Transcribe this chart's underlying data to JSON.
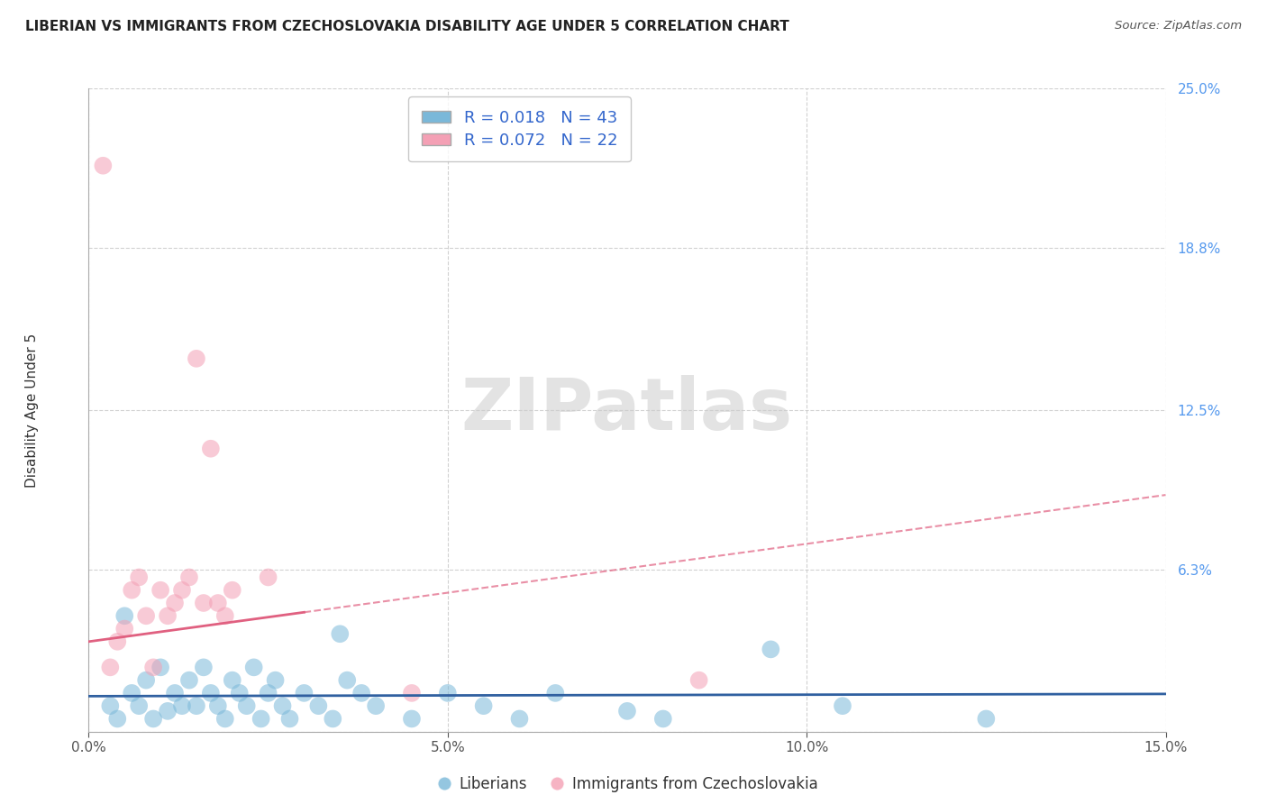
{
  "title": "LIBERIAN VS IMMIGRANTS FROM CZECHOSLOVAKIA DISABILITY AGE UNDER 5 CORRELATION CHART",
  "source": "Source: ZipAtlas.com",
  "ylabel": "Disability Age Under 5",
  "xlabel": "",
  "xlim": [
    0.0,
    15.0
  ],
  "ylim": [
    0.0,
    25.0
  ],
  "blue_color": "#7ab8d9",
  "pink_color": "#f4a0b5",
  "blue_line_color": "#3060a0",
  "pink_line_color": "#e06080",
  "blue_R": 0.018,
  "blue_N": 43,
  "pink_R": 0.072,
  "pink_N": 22,
  "blue_scatter_x": [
    0.5,
    0.8,
    1.0,
    1.2,
    1.3,
    1.4,
    1.5,
    1.6,
    1.7,
    1.8,
    1.9,
    2.0,
    2.1,
    2.2,
    2.3,
    2.4,
    2.5,
    2.6,
    2.7,
    2.8,
    3.0,
    3.2,
    3.4,
    3.6,
    3.8,
    4.0,
    4.5,
    5.0,
    5.5,
    6.0,
    6.5,
    7.5,
    8.0,
    9.5,
    10.5,
    12.5,
    0.3,
    0.4,
    0.6,
    0.7,
    0.9,
    1.1,
    3.5
  ],
  "blue_scatter_y": [
    4.5,
    2.0,
    2.5,
    1.5,
    1.0,
    2.0,
    1.0,
    2.5,
    1.5,
    1.0,
    0.5,
    2.0,
    1.5,
    1.0,
    2.5,
    0.5,
    1.5,
    2.0,
    1.0,
    0.5,
    1.5,
    1.0,
    0.5,
    2.0,
    1.5,
    1.0,
    0.5,
    1.5,
    1.0,
    0.5,
    1.5,
    0.8,
    0.5,
    3.2,
    1.0,
    0.5,
    1.0,
    0.5,
    1.5,
    1.0,
    0.5,
    0.8,
    3.8
  ],
  "pink_scatter_x": [
    0.2,
    0.3,
    0.4,
    0.5,
    0.6,
    0.7,
    0.8,
    0.9,
    1.0,
    1.1,
    1.2,
    1.3,
    1.4,
    1.5,
    1.6,
    1.7,
    1.8,
    1.9,
    2.0,
    2.5,
    4.5,
    8.5
  ],
  "pink_scatter_y": [
    22.0,
    2.5,
    3.5,
    4.0,
    5.5,
    6.0,
    4.5,
    2.5,
    5.5,
    4.5,
    5.0,
    5.5,
    6.0,
    14.5,
    5.0,
    11.0,
    5.0,
    4.5,
    5.5,
    6.0,
    1.5,
    2.0
  ],
  "watermark": "ZIPatlas",
  "background_color": "#ffffff",
  "grid_color": "#cccccc"
}
